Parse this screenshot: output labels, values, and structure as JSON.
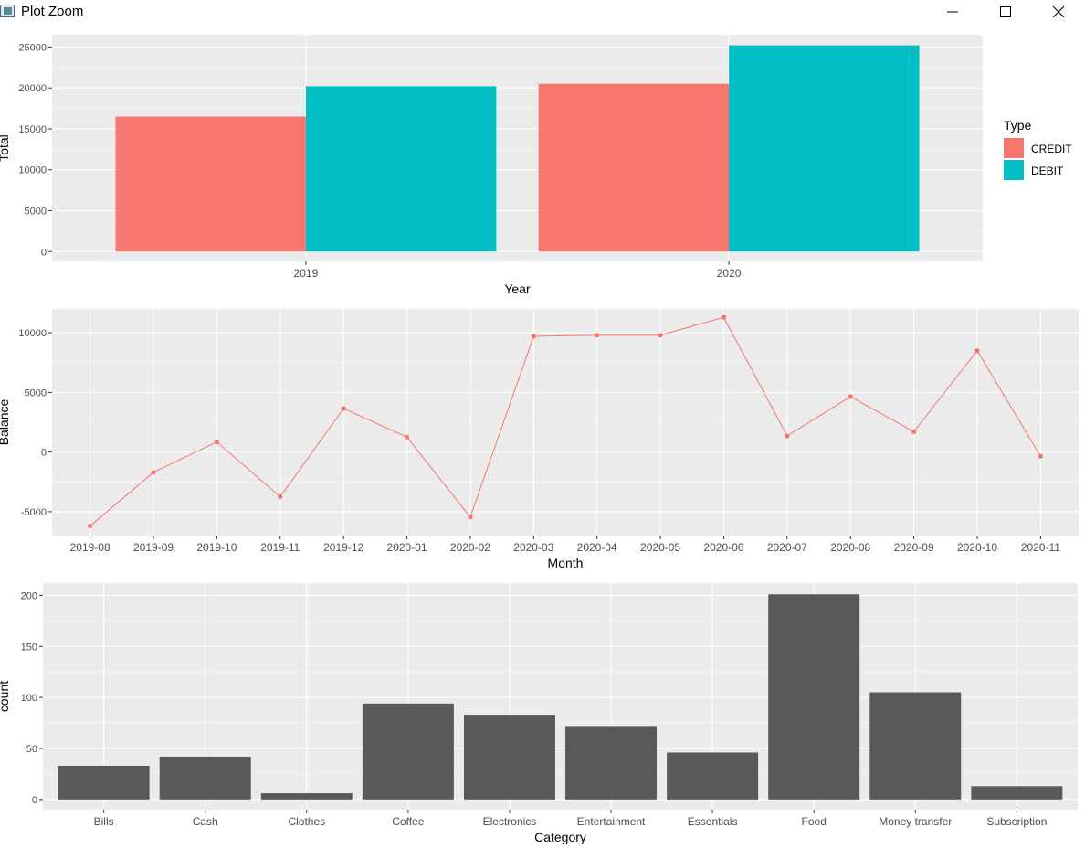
{
  "window": {
    "title": "Plot Zoom",
    "icons": [
      "app-icon",
      "minimize-icon",
      "maximize-icon",
      "close-icon"
    ]
  },
  "colors": {
    "panel": "#EBEBEB",
    "grid_major": "#FFFFFF",
    "credit": "#F8766D",
    "debit": "#00BFC4",
    "bar_gray": "#595959",
    "axis_text": "#4D4D4D"
  },
  "chart_data": [
    {
      "type": "bar",
      "title": "",
      "xlabel": "Year",
      "ylabel": "Total",
      "categories": [
        "2019",
        "2020"
      ],
      "series": [
        {
          "name": "CREDIT",
          "values": [
            16500,
            20500
          ]
        },
        {
          "name": "DEBIT",
          "values": [
            20200,
            25200
          ]
        }
      ],
      "ylim": [
        -1200,
        26500
      ],
      "yticks": [
        0,
        5000,
        10000,
        15000,
        20000,
        25000
      ],
      "legend": {
        "title": "Type",
        "entries": [
          "CREDIT",
          "DEBIT"
        ],
        "placement": "right"
      },
      "grid": true
    },
    {
      "type": "line",
      "title": "",
      "xlabel": "Month",
      "ylabel": "Balance",
      "categories": [
        "2019-08",
        "2019-09",
        "2019-10",
        "2019-11",
        "2019-12",
        "2020-01",
        "2020-02",
        "2020-03",
        "2020-04",
        "2020-05",
        "2020-06",
        "2020-07",
        "2020-08",
        "2020-09",
        "2020-10",
        "2020-11"
      ],
      "series": [
        {
          "name": "Balance",
          "values": [
            -6200,
            -1700,
            850,
            -3750,
            3650,
            1250,
            -5450,
            9700,
            9800,
            9800,
            11300,
            1350,
            4650,
            1700,
            8500,
            -350
          ]
        }
      ],
      "ylim": [
        -7000,
        12000
      ],
      "yticks": [
        -5000,
        0,
        5000,
        10000
      ],
      "grid": true
    },
    {
      "type": "bar",
      "title": "",
      "xlabel": "Category",
      "ylabel": "count",
      "categories": [
        "Bills",
        "Cash",
        "Clothes",
        "Coffee",
        "Electronics",
        "Entertainment",
        "Essentials",
        "Food",
        "Money transfer",
        "Subscription"
      ],
      "values": [
        33,
        42,
        6,
        94,
        83,
        72,
        46,
        201,
        105,
        13
      ],
      "ylim": [
        -10,
        212
      ],
      "yticks": [
        0,
        50,
        100,
        150,
        200
      ],
      "grid": true
    }
  ]
}
